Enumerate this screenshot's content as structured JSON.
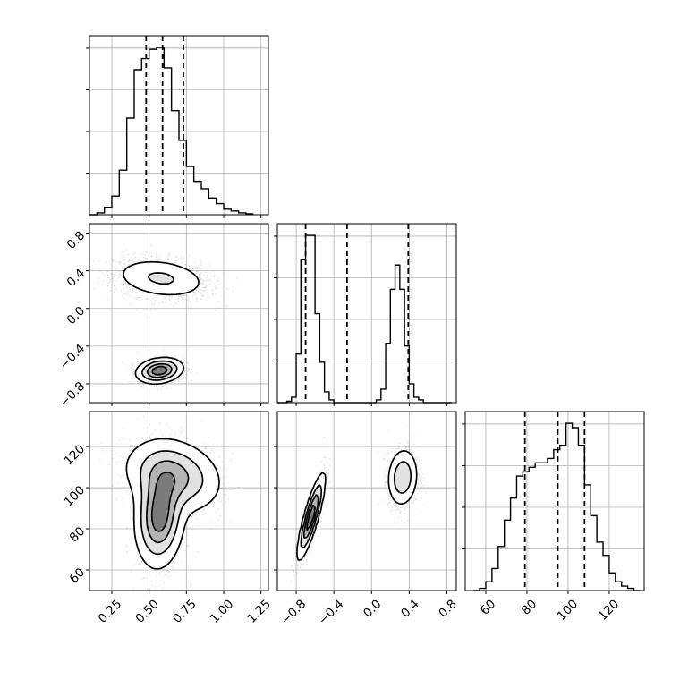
{
  "chart_data": {
    "type": "corner",
    "parameters": [
      {
        "index": 0,
        "range": [
          0.1,
          1.3
        ],
        "ticks": [
          0.25,
          0.5,
          0.75,
          1.0,
          1.25
        ],
        "tick_labels": [
          "0.25",
          "0.50",
          "0.75",
          "1.00",
          "1.25"
        ],
        "quantiles": [
          0.48,
          0.59,
          0.73
        ]
      },
      {
        "index": 1,
        "range": [
          -1.0,
          0.9
        ],
        "ticks": [
          -0.8,
          -0.4,
          0.0,
          0.4,
          0.8
        ],
        "tick_labels": [
          "−0.8",
          "−0.4",
          "0.0",
          "0.4",
          "0.8"
        ],
        "quantiles": [
          -0.7,
          -0.26,
          0.39
        ]
      },
      {
        "index": 2,
        "range": [
          50,
          137
        ],
        "ticks": [
          60,
          80,
          100,
          120
        ],
        "tick_labels": [
          "60",
          "80",
          "100",
          "120"
        ],
        "quantiles": [
          79,
          95,
          108
        ]
      }
    ],
    "histograms": [
      {
        "param": 0,
        "bin_edges": [
          0.1,
          0.15,
          0.2,
          0.25,
          0.3,
          0.35,
          0.4,
          0.45,
          0.5,
          0.55,
          0.6,
          0.65,
          0.7,
          0.75,
          0.8,
          0.85,
          0.9,
          0.95,
          1.0,
          1.05,
          1.1,
          1.15,
          1.2
        ],
        "counts": [
          0,
          10,
          40,
          100,
          240,
          520,
          780,
          840,
          890,
          900,
          790,
          560,
          400,
          260,
          180,
          140,
          90,
          60,
          30,
          20,
          10,
          5
        ]
      },
      {
        "param": 1,
        "bin_edges": [
          -1.0,
          -0.95,
          -0.9,
          -0.85,
          -0.8,
          -0.75,
          -0.7,
          -0.65,
          -0.6,
          -0.55,
          -0.5,
          -0.45,
          -0.4,
          -0.35,
          -0.3,
          -0.25,
          -0.2,
          -0.15,
          -0.1,
          -0.05,
          0.0,
          0.05,
          0.1,
          0.15,
          0.2,
          0.25,
          0.3,
          0.35,
          0.4,
          0.45,
          0.5,
          0.55,
          0.6,
          0.65,
          0.7,
          0.75,
          0.8,
          0.85
        ],
        "counts": [
          0,
          0,
          5,
          20,
          180,
          530,
          620,
          620,
          330,
          150,
          40,
          10,
          0,
          0,
          0,
          0,
          0,
          0,
          0,
          0,
          0,
          10,
          50,
          220,
          420,
          510,
          420,
          210,
          70,
          20,
          10,
          0,
          0,
          0,
          0,
          0,
          0
        ]
      },
      {
        "param": 2,
        "bin_edges": [
          54,
          57,
          60,
          63,
          66,
          69,
          72,
          75,
          78,
          81,
          84,
          87,
          90,
          93,
          96,
          99,
          102,
          105,
          108,
          111,
          114,
          117,
          120,
          123,
          126,
          129,
          132,
          135
        ],
        "counts": [
          0,
          5,
          20,
          50,
          100,
          160,
          210,
          260,
          270,
          280,
          290,
          290,
          300,
          320,
          330,
          380,
          370,
          330,
          240,
          170,
          110,
          80,
          40,
          20,
          10,
          5,
          0
        ]
      }
    ],
    "pairs": [
      {
        "x_param": 0,
        "y_param": 1,
        "modes": [
          {
            "center": [
              0.58,
              0.32
            ],
            "sd": [
              0.16,
              0.11
            ],
            "corr": -0.25,
            "weight": 0.55
          },
          {
            "center": [
              0.57,
              -0.66
            ],
            "sd": [
              0.075,
              0.065
            ],
            "corr": 0.2,
            "weight": 0.45
          }
        ]
      },
      {
        "x_param": 0,
        "y_param": 2,
        "modes": [
          {
            "center": [
              0.57,
              86
            ],
            "sd": [
              0.08,
              12
            ],
            "corr": 0.1,
            "weight": 0.5
          },
          {
            "center": [
              0.66,
              106
            ],
            "sd": [
              0.16,
              9
            ],
            "corr": -0.2,
            "weight": 0.5
          }
        ]
      },
      {
        "x_param": 1,
        "y_param": 2,
        "modes": [
          {
            "center": [
              -0.64,
              86
            ],
            "sd": [
              0.07,
              10
            ],
            "corr": 0.85,
            "weight": 0.55
          },
          {
            "center": [
              0.33,
              105
            ],
            "sd": [
              0.08,
              7
            ],
            "corr": 0.1,
            "weight": 0.45
          }
        ]
      }
    ],
    "grid": true
  }
}
